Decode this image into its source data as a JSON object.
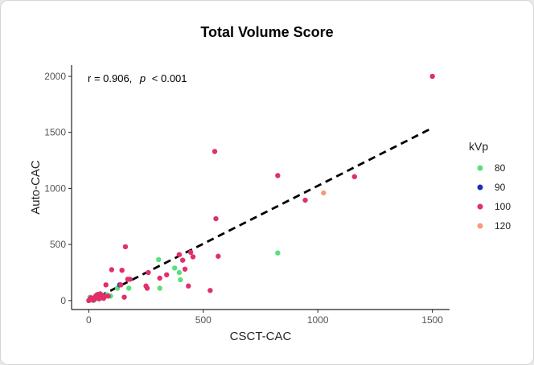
{
  "chart_data": {
    "type": "scatter",
    "title": "Total Volume Score",
    "xlabel": "CSCT-CAC",
    "ylabel": "Auto-CAC",
    "xlim": [
      -75,
      1575
    ],
    "ylim": [
      -80,
      2100
    ],
    "xticks": [
      0,
      500,
      1000,
      1500
    ],
    "yticks": [
      0,
      500,
      1000,
      1500,
      2000
    ],
    "grid": false,
    "annotation": {
      "r_text": "r = 0.906,",
      "p_symbol": "p",
      "p_text": "< 0.001"
    },
    "legend": {
      "title": "kVp",
      "placement": "right",
      "entries": [
        {
          "label": "80",
          "color": "#59e07a"
        },
        {
          "label": "90",
          "color": "#1f2fb8"
        },
        {
          "label": "100",
          "color": "#e0306b"
        },
        {
          "label": "120",
          "color": "#f59a7a"
        }
      ]
    },
    "trendline": {
      "x": [
        0,
        1500
      ],
      "y": [
        -10,
        1540
      ],
      "style": "dashed",
      "color": "#000000"
    },
    "series": [
      {
        "name": "80",
        "color": "#59e07a",
        "points": [
          [
            5,
            30
          ],
          [
            15,
            20
          ],
          [
            25,
            15
          ],
          [
            45,
            30
          ],
          [
            65,
            40
          ],
          [
            80,
            50
          ],
          [
            95,
            40
          ],
          [
            125,
            110
          ],
          [
            175,
            110
          ],
          [
            305,
            365
          ],
          [
            310,
            110
          ],
          [
            375,
            290
          ],
          [
            395,
            250
          ],
          [
            400,
            185
          ],
          [
            825,
            425
          ],
          [
            20,
            0
          ],
          [
            55,
            25
          ]
        ]
      },
      {
        "name": "90",
        "color": "#1f2fb8",
        "points": [
          [
            135,
            140
          ]
        ]
      },
      {
        "name": "100",
        "color": "#e0306b",
        "points": [
          [
            0,
            0
          ],
          [
            5,
            10
          ],
          [
            10,
            25
          ],
          [
            18,
            5
          ],
          [
            25,
            10
          ],
          [
            30,
            40
          ],
          [
            35,
            50
          ],
          [
            40,
            55
          ],
          [
            45,
            15
          ],
          [
            50,
            60
          ],
          [
            55,
            30
          ],
          [
            60,
            45
          ],
          [
            65,
            20
          ],
          [
            70,
            35
          ],
          [
            75,
            140
          ],
          [
            85,
            40
          ],
          [
            100,
            275
          ],
          [
            140,
            140
          ],
          [
            145,
            270
          ],
          [
            155,
            30
          ],
          [
            160,
            480
          ],
          [
            170,
            190
          ],
          [
            180,
            190
          ],
          [
            250,
            130
          ],
          [
            255,
            110
          ],
          [
            260,
            250
          ],
          [
            310,
            200
          ],
          [
            340,
            230
          ],
          [
            395,
            410
          ],
          [
            410,
            360
          ],
          [
            420,
            280
          ],
          [
            435,
            130
          ],
          [
            445,
            430
          ],
          [
            455,
            390
          ],
          [
            530,
            90
          ],
          [
            550,
            1330
          ],
          [
            555,
            730
          ],
          [
            565,
            395
          ],
          [
            825,
            1115
          ],
          [
            945,
            895
          ],
          [
            1160,
            1105
          ],
          [
            1500,
            2000
          ]
        ]
      },
      {
        "name": "120",
        "color": "#f59a7a",
        "points": [
          [
            1025,
            960
          ]
        ]
      }
    ]
  }
}
